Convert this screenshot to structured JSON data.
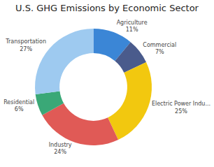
{
  "chart_data": {
    "type": "pie",
    "title": "U.S. GHG Emissions by Economic Sector",
    "categories": [
      "Agriculture",
      "Commercial",
      "Electric Power Indu...",
      "Industry",
      "Residential",
      "Transportation"
    ],
    "values": [
      11,
      7,
      25,
      24,
      6,
      27
    ],
    "value_labels": [
      "11%",
      "7%",
      "25%",
      "24%",
      "6%",
      "27%"
    ],
    "colors": [
      "#3b86d6",
      "#4a5b8c",
      "#f2c80f",
      "#e05a56",
      "#3aa877",
      "#9ecaf0"
    ],
    "data_labels": true
  }
}
